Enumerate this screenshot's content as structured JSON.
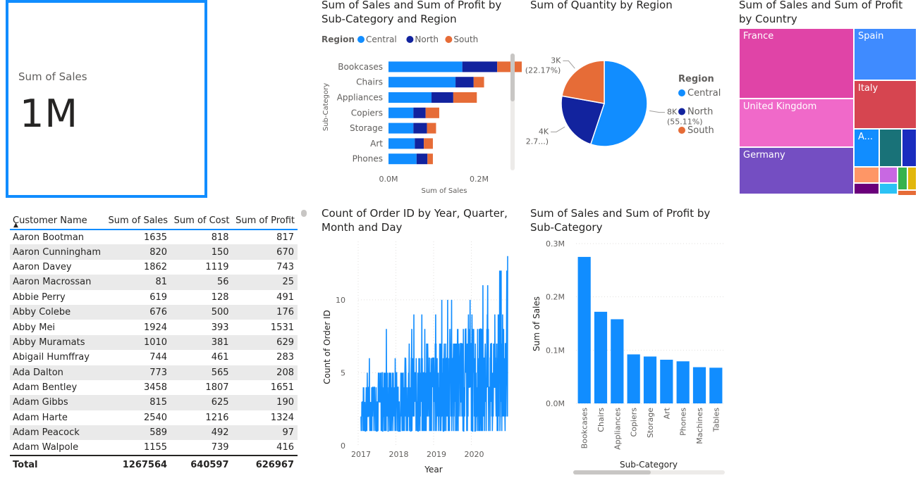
{
  "card": {
    "label": "Sum of Sales",
    "value": "1M"
  },
  "table": {
    "columns": [
      "Customer Name",
      "Sum of Sales",
      "Sum of Cost",
      "Sum of Profit"
    ],
    "rows": [
      [
        "Aaron Bootman",
        "1635",
        "818",
        "817"
      ],
      [
        "Aaron Cunningham",
        "820",
        "150",
        "670"
      ],
      [
        "Aaron Davey",
        "1862",
        "1119",
        "743"
      ],
      [
        "Aaron Macrossan",
        "81",
        "56",
        "25"
      ],
      [
        "Abbie Perry",
        "619",
        "128",
        "491"
      ],
      [
        "Abby Colebe",
        "676",
        "500",
        "176"
      ],
      [
        "Abby Mei",
        "1924",
        "393",
        "1531"
      ],
      [
        "Abby Muramats",
        "1010",
        "381",
        "629"
      ],
      [
        "Abigail Humffray",
        "744",
        "461",
        "283"
      ],
      [
        "Ada Dalton",
        "773",
        "565",
        "208"
      ],
      [
        "Adam Bentley",
        "3458",
        "1807",
        "1651"
      ],
      [
        "Adam Gibbs",
        "815",
        "625",
        "190"
      ],
      [
        "Adam Harte",
        "2540",
        "1216",
        "1324"
      ],
      [
        "Adam Peacock",
        "589",
        "492",
        "97"
      ],
      [
        "Adam Walpole",
        "1155",
        "739",
        "416"
      ]
    ],
    "total": [
      "Total",
      "1267564",
      "640597",
      "626967"
    ],
    "sort_icon": "sort-ascending-icon"
  },
  "colors": {
    "central": "#118DFF",
    "north": "#12239E",
    "south": "#E66C37",
    "accent": "#118DFF"
  },
  "chart_data": [
    {
      "id": "stacked_bar",
      "type": "bar",
      "orientation": "horizontal-stacked",
      "title": "Sum of Sales and Sum of Profit by Sub-Category and Region",
      "title_lines": [
        "Sum of Sales and Sum of Profit by",
        "Sub-Category and Region"
      ],
      "legend_title": "Region",
      "xlabel": "Sum of Sales",
      "ylabel": "Sub-Category",
      "xticks": [
        "0.0M",
        "0.2M"
      ],
      "xlim": [
        0,
        0.33
      ],
      "categories": [
        "Bookcases",
        "Chairs",
        "Appliances",
        "Copiers",
        "Storage",
        "Art",
        "Phones"
      ],
      "series": [
        {
          "name": "Central",
          "values": [
            0.163,
            0.148,
            0.095,
            0.055,
            0.055,
            0.058,
            0.062
          ]
        },
        {
          "name": "North",
          "values": [
            0.077,
            0.04,
            0.048,
            0.027,
            0.03,
            0.02,
            0.024
          ]
        },
        {
          "name": "South",
          "values": [
            0.09,
            0.023,
            0.052,
            0.03,
            0.02,
            0.02,
            0.012
          ]
        }
      ]
    },
    {
      "id": "pie",
      "type": "pie",
      "title": "Sum of Quantity by Region",
      "legend_title": "Region",
      "slices": [
        {
          "name": "Central",
          "value": 55.11,
          "label": "8K",
          "pct": "(55.11%)"
        },
        {
          "name": "North",
          "value": 22.72,
          "label": "4K",
          "pct": "(22.7...)"
        },
        {
          "name": "South",
          "value": 22.17,
          "label": "3K",
          "pct": "(22.17%)"
        }
      ]
    },
    {
      "id": "treemap",
      "type": "treemap",
      "title": "Sum of Sales and Sum of Profit by Country",
      "title_lines": [
        "Sum of Sales and Sum of Profit",
        "by Country"
      ],
      "items": [
        {
          "name": "France",
          "color": "#E044A7"
        },
        {
          "name": "United Kingdom",
          "color": "#F069C9"
        },
        {
          "name": "Germany",
          "color": "#744EC2"
        },
        {
          "name": "Spain",
          "color": "#3F8BFF"
        },
        {
          "name": "Italy",
          "color": "#D64550"
        },
        {
          "name": "A...",
          "color": "#118DFF"
        }
      ],
      "small_colors": [
        "#197278",
        "#1A2DBF",
        "#FE9666",
        "#C868E2",
        "#37B24D",
        "#E2B70C",
        "#6B007B",
        "#2BC2F5",
        "#E66C37"
      ]
    },
    {
      "id": "line",
      "type": "line",
      "title": "Count of Order ID by Year, Quarter, Month and Day",
      "title_lines": [
        "Count of Order ID by Year, Quarter,",
        "Month and Day"
      ],
      "xlabel": "Year",
      "ylabel": "Count of Order ID",
      "xticks": [
        "2017",
        "2018",
        "2019",
        "2020"
      ],
      "yticks": [
        "0",
        "5",
        "10"
      ],
      "ylim": [
        0,
        14
      ],
      "x_start": 2017.0,
      "x_end": 2021.0,
      "y_min_band": 1,
      "y_peak": 13
    },
    {
      "id": "column",
      "type": "bar",
      "title": "Sum of Sales and Sum of Profit by Sub-Category",
      "title_lines": [
        "Sum of Sales and Sum of Profit by",
        "Sub-Category"
      ],
      "xlabel": "Sub-Category",
      "ylabel": "Sum of Sales",
      "yticks": [
        "0.0M",
        "0.1M",
        "0.2M",
        "0.3M"
      ],
      "ylim": [
        0,
        0.3
      ],
      "categories": [
        "Bookcases",
        "Chairs",
        "Appliances",
        "Copiers",
        "Storage",
        "Art",
        "Phones",
        "Machines",
        "Tables"
      ],
      "values": [
        0.275,
        0.172,
        0.158,
        0.092,
        0.088,
        0.082,
        0.079,
        0.068,
        0.067
      ]
    }
  ]
}
